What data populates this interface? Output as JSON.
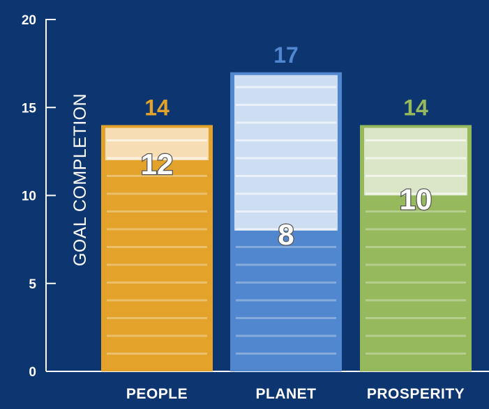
{
  "chart_data": {
    "type": "bar",
    "ylabel": "GOAL COMPLETION",
    "ylim": [
      0,
      20
    ],
    "yticks": [
      0,
      5,
      10,
      15,
      20
    ],
    "grid": false,
    "categories": [
      "PEOPLE",
      "PLANET",
      "PROSPERITY"
    ],
    "series": [
      {
        "values": [
          14,
          17,
          14
        ]
      },
      {
        "values": [
          12,
          8,
          10
        ]
      }
    ],
    "colors": {
      "background": "#0d3570",
      "bars": [
        "#e3a22a",
        "#5187cf",
        "#95b95c"
      ],
      "bar_light": [
        "#f6ddb4",
        "#cdddf2",
        "#dbe6c8"
      ],
      "total_labels": [
        "#e3a22a",
        "#5187cf",
        "#95b95c"
      ]
    }
  }
}
